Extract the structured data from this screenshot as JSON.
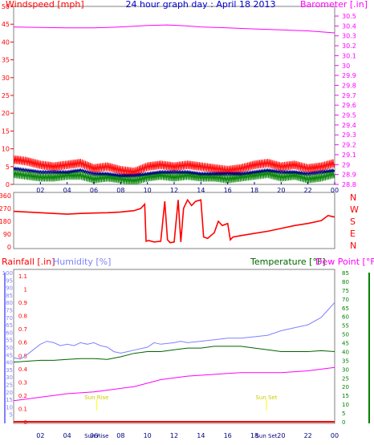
{
  "chart_data": [
    {
      "type": "line",
      "title": "24 hour graph day : April 18 2013",
      "left_axis_label": "Windspeed [mph]",
      "right_axis_label": "Barometer [.in]",
      "x_ticks": [
        "02",
        "04",
        "06",
        "08",
        "10",
        "12",
        "14",
        "16",
        "18",
        "20",
        "22",
        "00"
      ],
      "left_ticks": [
        "0",
        "5",
        "10",
        "15",
        "20",
        "25",
        "30",
        "35",
        "40",
        "45",
        "50"
      ],
      "right_ticks": [
        "28.8",
        "28.9",
        "29",
        "29.1",
        "29.2",
        "29.3",
        "29.4",
        "29.5",
        "29.6",
        "29.7",
        "29.8",
        "29.9",
        "30",
        "30.1",
        "30.2",
        "30.3",
        "30.4",
        "30.5"
      ],
      "ylim_left": [
        0,
        50
      ],
      "ylim_right": [
        28.8,
        30.5
      ],
      "xlim_hours": [
        0,
        24
      ],
      "colors": {
        "wind": "#ff0000",
        "gust": "#008000",
        "avg": "#00008b",
        "barometer": "#ff00ff"
      },
      "series": [
        {
          "axis": "left",
          "color": "#ff0000",
          "hours": [
            0,
            1,
            2,
            3,
            4,
            5,
            6,
            7,
            8,
            9,
            10,
            11,
            12,
            13,
            14,
            15,
            16,
            17,
            18,
            19,
            20,
            21,
            22,
            23,
            24
          ],
          "values": [
            7,
            6.5,
            5.5,
            5,
            5.5,
            6,
            4.5,
            5,
            4,
            3.5,
            5,
            5.5,
            5,
            5.5,
            5,
            4.5,
            4,
            4.5,
            5.5,
            6,
            5,
            5.5,
            4.5,
            5,
            6
          ]
        },
        {
          "axis": "left",
          "color": "#008000",
          "hours": [
            0,
            1,
            2,
            3,
            4,
            5,
            6,
            7,
            8,
            9,
            10,
            11,
            12,
            13,
            14,
            15,
            16,
            17,
            18,
            19,
            20,
            21,
            22,
            23,
            24
          ],
          "values": [
            3,
            2.5,
            2,
            2,
            2.5,
            2.5,
            1.5,
            2,
            1.5,
            1,
            2,
            2.5,
            2,
            2.5,
            2,
            2,
            1.5,
            2,
            2.5,
            3,
            2,
            2.5,
            1.5,
            2,
            3
          ]
        },
        {
          "axis": "left",
          "color": "#00008b",
          "hours": [
            0,
            1,
            2,
            3,
            4,
            5,
            6,
            7,
            8,
            9,
            10,
            11,
            12,
            13,
            14,
            15,
            16,
            17,
            18,
            19,
            20,
            21,
            22,
            23,
            24
          ],
          "values": [
            4.5,
            4,
            3.5,
            3.5,
            3.5,
            4,
            3,
            3,
            2.5,
            2.5,
            3,
            3.5,
            3.5,
            3.5,
            3,
            3,
            3,
            3,
            3.5,
            4,
            3.5,
            3.5,
            3,
            3.5,
            4
          ]
        },
        {
          "axis": "right",
          "color": "#ff00ff",
          "hours": [
            0,
            2,
            4,
            6,
            8,
            10,
            11.5,
            13,
            14,
            16,
            18,
            20,
            22,
            24
          ],
          "values": [
            30.39,
            30.385,
            30.38,
            30.38,
            30.39,
            30.405,
            30.41,
            30.4,
            30.39,
            30.38,
            30.37,
            30.36,
            30.35,
            30.33
          ]
        }
      ]
    },
    {
      "type": "line",
      "left_ticks": [
        "0",
        "90",
        "180",
        "270",
        "360"
      ],
      "right_ticks": [
        "N",
        "W",
        "S",
        "E",
        "N"
      ],
      "ylim": [
        0,
        360
      ],
      "xlim_hours": [
        0,
        24
      ],
      "colors": {
        "direction": "#ff0000"
      },
      "series": [
        {
          "color": "#ff0000",
          "hours": [
            0,
            1,
            2,
            3,
            4,
            5,
            6,
            7,
            8,
            9,
            9.5,
            9.8,
            9.9,
            10.1,
            10.5,
            11,
            11.3,
            11.5,
            11.7,
            12,
            12.3,
            12.5,
            12.7,
            13,
            13.3,
            13.6,
            14,
            14.2,
            14.5,
            15,
            15.3,
            15.6,
            16,
            16.2,
            16.4,
            17,
            18,
            19,
            20,
            21,
            22,
            23,
            23.5,
            24
          ],
          "values": [
            250,
            245,
            240,
            235,
            230,
            235,
            238,
            240,
            245,
            255,
            270,
            300,
            40,
            45,
            35,
            40,
            320,
            50,
            30,
            35,
            330,
            35,
            270,
            330,
            290,
            320,
            330,
            70,
            60,
            100,
            180,
            150,
            165,
            50,
            70,
            80,
            95,
            110,
            130,
            150,
            165,
            185,
            220,
            210
          ]
        }
      ]
    },
    {
      "type": "line",
      "labels": {
        "rain": "Rainfall [.in]",
        "humidity": "Humidity [%]",
        "temperature": "Temperature [°F]",
        "dewpoint": "Dew Point [°F]"
      },
      "rain_ticks": [
        "0",
        "0.1",
        "0.2",
        "0.3",
        "0.4",
        "0.5",
        "0.6",
        "0.7",
        "0.8",
        "0.9",
        "1",
        "1.1"
      ],
      "humidity_ticks": [
        "5",
        "10",
        "15",
        "20",
        "25",
        "30",
        "35",
        "40",
        "45",
        "50",
        "55",
        "60",
        "65",
        "70",
        "75",
        "80",
        "85",
        "90",
        "95",
        "100"
      ],
      "temperature_ticks": [
        "0",
        "5",
        "10",
        "15",
        "20",
        "25",
        "30",
        "35",
        "40",
        "45",
        "50",
        "55",
        "60",
        "65",
        "70",
        "75",
        "80",
        "85"
      ],
      "ylim_humidity": [
        0,
        100
      ],
      "ylim_temperature": [
        0,
        85
      ],
      "xlim_hours": [
        0,
        24
      ],
      "x_ticks": [
        "02",
        "04",
        "06",
        "08",
        "10",
        "12",
        "14",
        "16",
        "18",
        "20",
        "22",
        "00"
      ],
      "sun_labels": [
        "Sun Rise",
        "Sun Set"
      ],
      "sun_markers": [
        "Sun Rise",
        "Sun Set"
      ],
      "sun_hours": [
        6.2,
        18.9
      ],
      "colors": {
        "rain": "#ff0000",
        "humidity": "#8080ff",
        "temperature": "#006400",
        "dewpoint": "#ff00ff"
      },
      "series": [
        {
          "key": "humidity",
          "color": "#8080ff",
          "hours": [
            0,
            0.5,
            1,
            2,
            2.5,
            3,
            3.5,
            4,
            4.5,
            5,
            5.5,
            6,
            6.5,
            7,
            7.5,
            8,
            8.5,
            9,
            10,
            10.5,
            11,
            12,
            12.5,
            13,
            14,
            15,
            16,
            17,
            18,
            19,
            20,
            21,
            22,
            23,
            23.5,
            24
          ],
          "values": [
            43,
            42,
            45,
            52,
            54,
            53,
            51,
            52,
            51,
            53,
            52,
            53,
            51,
            50,
            47,
            46,
            47,
            48,
            50,
            53,
            52,
            53,
            54,
            53,
            54,
            55,
            56,
            56,
            57,
            58,
            61,
            63,
            65,
            70,
            75,
            80
          ]
        },
        {
          "key": "temperature",
          "color": "#006400",
          "hours": [
            0,
            1,
            2,
            3,
            4,
            5,
            6,
            7,
            8,
            9,
            10,
            11,
            12,
            13,
            14,
            15,
            16,
            17,
            18,
            19,
            20,
            21,
            22,
            23,
            24
          ],
          "values": [
            34,
            34.5,
            35,
            35,
            35.5,
            36,
            36,
            35.5,
            37,
            39,
            40,
            40,
            41,
            42,
            42,
            43,
            43,
            43,
            42,
            41,
            40,
            40,
            40,
            40.5,
            40
          ]
        },
        {
          "key": "dewpoint",
          "color": "#ff00ff",
          "hours": [
            0,
            1,
            2,
            3,
            4,
            5,
            6,
            7,
            8,
            9,
            10,
            11,
            12,
            13,
            14,
            15,
            16,
            17,
            18,
            19,
            20,
            21,
            22,
            23,
            24
          ],
          "values": [
            12,
            13,
            14,
            15,
            16,
            16.5,
            17,
            18,
            19,
            20,
            22,
            24,
            25,
            26,
            26.5,
            27,
            27.5,
            28,
            28,
            28,
            28,
            28.5,
            29,
            30,
            31
          ]
        },
        {
          "key": "rain",
          "color": "#ff0000",
          "hours": [
            0,
            24
          ],
          "values": [
            0,
            0
          ]
        }
      ]
    }
  ]
}
